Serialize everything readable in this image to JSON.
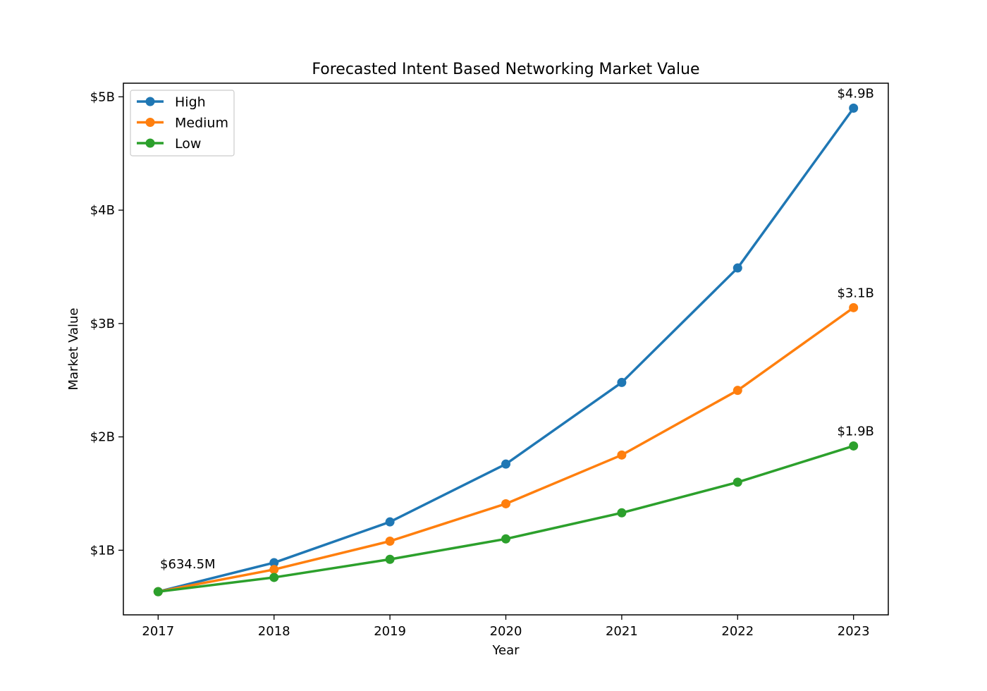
{
  "chart_data": {
    "type": "line",
    "title": "Forecasted Intent Based Networking Market Value",
    "xlabel": "Year",
    "ylabel": "Market Value",
    "x": [
      2017,
      2018,
      2019,
      2020,
      2021,
      2022,
      2023
    ],
    "x_tick_labels": [
      "2017",
      "2018",
      "2019",
      "2020",
      "2021",
      "2022",
      "2023"
    ],
    "y_ticks": [
      1,
      2,
      3,
      4,
      5
    ],
    "y_tick_labels": [
      "$1B",
      "$2B",
      "$3B",
      "$4B",
      "$5B"
    ],
    "y_unit": "billion USD",
    "xlim": [
      2016.7,
      2023.3
    ],
    "ylim": [
      0.43,
      5.12
    ],
    "grid": false,
    "legend_position": "top-left",
    "series": [
      {
        "name": "High",
        "color": "#1f77b4",
        "values": [
          0.6345,
          0.89,
          1.25,
          1.76,
          2.48,
          3.49,
          4.9
        ]
      },
      {
        "name": "Medium",
        "color": "#ff7f0e",
        "values": [
          0.6345,
          0.83,
          1.08,
          1.41,
          1.84,
          2.41,
          3.14
        ]
      },
      {
        "name": "Low",
        "color": "#2ca02c",
        "values": [
          0.6345,
          0.76,
          0.92,
          1.1,
          1.33,
          1.6,
          1.92
        ]
      }
    ],
    "annotations": [
      {
        "text": "$634.5M",
        "x": 2017,
        "y": 0.6345
      },
      {
        "text": "$4.9B",
        "x": 2023,
        "y": 4.9
      },
      {
        "text": "$3.1B",
        "x": 2023,
        "y": 3.14
      },
      {
        "text": "$1.9B",
        "x": 2023,
        "y": 1.92
      }
    ]
  }
}
